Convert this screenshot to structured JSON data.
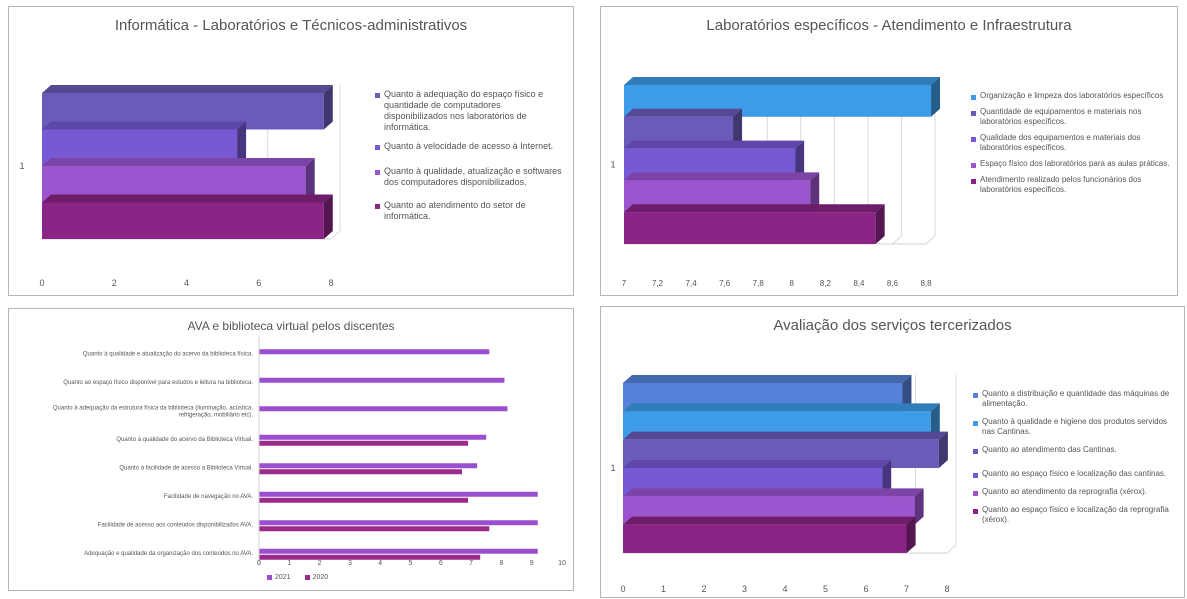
{
  "chart_data": [
    {
      "type": "bar",
      "title": "Informática - Laboratórios e Técnicos-administrativos",
      "categories": [
        "1"
      ],
      "xlim": [
        0,
        8
      ],
      "ticks": [
        "0",
        "2",
        "4",
        "6",
        "8"
      ],
      "grid": true,
      "legend_position": "right",
      "series": [
        {
          "name": "Quanto à adequação do espaço físico e quantidade de computadores disponibilizados nos laboratórios de informática.",
          "values": [
            7.8
          ],
          "color": "#6a5bb8"
        },
        {
          "name": "Quanto à velocidade de acesso à Internet.",
          "values": [
            5.4
          ],
          "color": "#7659d4"
        },
        {
          "name": "Quanto à qualidade, atualização e softwares dos computadores disponibilizados.",
          "values": [
            7.3
          ],
          "color": "#9a55cf"
        },
        {
          "name": "Quanto ao atendimento do setor de informática.",
          "values": [
            7.8
          ],
          "color": "#8a2486"
        }
      ]
    },
    {
      "type": "bar",
      "title": "Laboratórios específicos - Atendimento e Infraestrutura",
      "categories": [
        "1"
      ],
      "xlim": [
        7,
        8.8
      ],
      "ticks": [
        "7",
        "7,2",
        "7,4",
        "7,6",
        "7,8",
        "8",
        "8,2",
        "8,4",
        "8,6",
        "8,8"
      ],
      "grid": true,
      "legend_position": "right",
      "series": [
        {
          "name": "Organização e limpeza dos laboratórios específicos",
          "values": [
            8.83
          ],
          "color": "#3d9be8"
        },
        {
          "name": "Quantidade de equipamentos e materiais nos laboratórios específicos.",
          "values": [
            7.65
          ],
          "color": "#6a5bb8"
        },
        {
          "name": "Qualidade dos equipamentos e materiais dos laboratórios específicos.",
          "values": [
            8.02
          ],
          "color": "#7659d4"
        },
        {
          "name": "Espaço físico dos laboratórios para as aulas práticas.",
          "values": [
            8.11
          ],
          "color": "#9a55cf"
        },
        {
          "name": "Atendimento realizado pelos funcionários dos laboratórios específicos.",
          "values": [
            8.5
          ],
          "color": "#8a2486"
        }
      ]
    },
    {
      "type": "bar",
      "title": "AVA e biblioteca virtual pelos discentes",
      "categories": [
        "Quanto à qualidade e atualização do acervo da biblioteca física.",
        "Quanto ao espaço físico disponível para estudos e leitura na biblioteca.",
        "Quanto à adequação da estrutura física da biblioteca (iluminação, acústica, refrigeração, mobiliário etc).",
        "Quanto à qualidade do acervo da Biblioteca Virtual.",
        "Quanto à facilidade de acesso a Biblioteca Virtual.",
        "Facilidade de navegação no AVA.",
        "Facilidade de acesso aos conteúdos disponibilizados AVA.",
        "Adequação e qualidade da organização dos conteúdos no AVA."
      ],
      "xlim": [
        0,
        10
      ],
      "ticks": [
        "0",
        "1",
        "2",
        "3",
        "4",
        "5",
        "6",
        "7",
        "8",
        "9",
        "10"
      ],
      "grid": false,
      "legend_position": "bottom",
      "series": [
        {
          "name": "2021",
          "values": [
            7.6,
            8.1,
            8.2,
            7.5,
            7.2,
            9.2,
            9.2,
            9.2
          ],
          "color": "#9a4fd0"
        },
        {
          "name": "2020",
          "values": [
            null,
            null,
            null,
            6.9,
            6.7,
            6.9,
            7.6,
            7.3
          ],
          "color": "#9a2a8c"
        }
      ]
    },
    {
      "type": "bar",
      "title": "Avaliação dos serviços tercerizados",
      "categories": [
        "1"
      ],
      "xlim": [
        0,
        8
      ],
      "ticks": [
        "0",
        "1",
        "2",
        "3",
        "4",
        "5",
        "6",
        "7",
        "8"
      ],
      "grid": true,
      "legend_position": "right",
      "series": [
        {
          "name": "Quanto a distribuição e quantidade das máquinas de alimentação.",
          "values": [
            6.9
          ],
          "color": "#5681d8"
        },
        {
          "name": "Quanto à qualidade e higiene dos produtos servidos nas Cantinas.",
          "values": [
            7.6
          ],
          "color": "#3d9be8"
        },
        {
          "name": "Quanto ao atendimento das Cantinas.",
          "values": [
            7.8
          ],
          "color": "#6a5bb8"
        },
        {
          "name": "Quanto ao espaço físico e localização das cantinas.",
          "values": [
            6.4
          ],
          "color": "#7659d4"
        },
        {
          "name": "Quanto ao atendimento da reprografia (xérox).",
          "values": [
            7.2
          ],
          "color": "#9a55cf"
        },
        {
          "name": "Quanto ao espaço físico e localização da reprografia (xérox).",
          "values": [
            7.0
          ],
          "color": "#8a2486"
        }
      ]
    }
  ]
}
